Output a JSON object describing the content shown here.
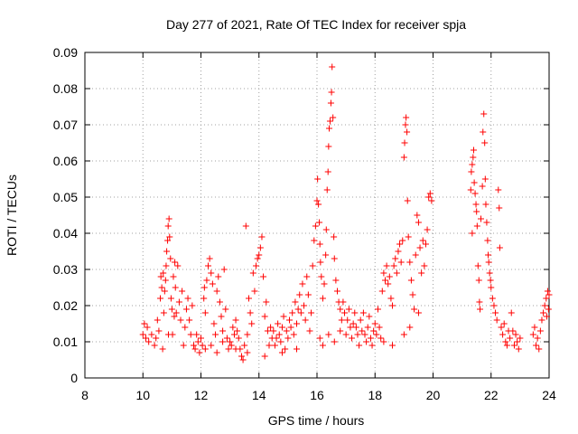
{
  "chart_data": {
    "type": "scatter",
    "title": "Day 277 of 2021, Rate Of TEC Index for receiver spja",
    "xlabel": "GPS time / hours",
    "ylabel": "ROTI / TECUs",
    "xlim": [
      8,
      24
    ],
    "ylim": [
      0,
      0.09
    ],
    "x_ticks": [
      "8",
      "10",
      "12",
      "14",
      "16",
      "18",
      "20",
      "22",
      "24"
    ],
    "y_ticks": [
      "0",
      "0.01",
      "0.02",
      "0.03",
      "0.04",
      "0.05",
      "0.06",
      "0.07",
      "0.08",
      "0.09"
    ],
    "grid": true,
    "marker": "+",
    "color": "#ff0000",
    "series": [
      {
        "name": "ROTI",
        "points": [
          [
            10.0,
            0.012
          ],
          [
            10.05,
            0.015
          ],
          [
            10.1,
            0.011
          ],
          [
            10.15,
            0.014
          ],
          [
            10.2,
            0.01
          ],
          [
            10.3,
            0.012
          ],
          [
            10.4,
            0.009
          ],
          [
            10.45,
            0.011
          ],
          [
            10.5,
            0.016
          ],
          [
            10.55,
            0.013
          ],
          [
            10.6,
            0.022
          ],
          [
            10.62,
            0.028
          ],
          [
            10.65,
            0.025
          ],
          [
            10.7,
            0.029
          ],
          [
            10.72,
            0.018
          ],
          [
            10.75,
            0.024
          ],
          [
            10.78,
            0.027
          ],
          [
            10.8,
            0.031
          ],
          [
            10.82,
            0.035
          ],
          [
            10.85,
            0.038
          ],
          [
            10.87,
            0.042
          ],
          [
            10.9,
            0.044
          ],
          [
            10.92,
            0.039
          ],
          [
            10.95,
            0.033
          ],
          [
            10.97,
            0.022
          ],
          [
            11.0,
            0.019
          ],
          [
            11.02,
            0.012
          ],
          [
            11.05,
            0.028
          ],
          [
            11.1,
            0.032
          ],
          [
            11.12,
            0.025
          ],
          [
            11.15,
            0.018
          ],
          [
            11.2,
            0.031
          ],
          [
            11.25,
            0.021
          ],
          [
            11.3,
            0.016
          ],
          [
            11.35,
            0.024
          ],
          [
            11.4,
            0.009
          ],
          [
            11.45,
            0.014
          ],
          [
            11.5,
            0.019
          ],
          [
            11.55,
            0.022
          ],
          [
            11.6,
            0.016
          ],
          [
            11.65,
            0.012
          ],
          [
            11.7,
            0.02
          ],
          [
            11.75,
            0.009
          ],
          [
            11.8,
            0.008
          ],
          [
            11.85,
            0.012
          ],
          [
            11.9,
            0.01
          ],
          [
            11.95,
            0.007
          ],
          [
            10.68,
            0.008
          ],
          [
            10.88,
            0.012
          ],
          [
            11.08,
            0.017
          ],
          [
            12.0,
            0.011
          ],
          [
            12.05,
            0.009
          ],
          [
            12.1,
            0.022
          ],
          [
            12.12,
            0.025
          ],
          [
            12.15,
            0.018
          ],
          [
            12.2,
            0.027
          ],
          [
            12.25,
            0.031
          ],
          [
            12.3,
            0.033
          ],
          [
            12.35,
            0.029
          ],
          [
            12.4,
            0.026
          ],
          [
            12.45,
            0.015
          ],
          [
            12.5,
            0.012
          ],
          [
            12.55,
            0.024
          ],
          [
            12.6,
            0.028
          ],
          [
            12.65,
            0.021
          ],
          [
            12.7,
            0.017
          ],
          [
            12.75,
            0.013
          ],
          [
            12.8,
            0.03
          ],
          [
            12.85,
            0.019
          ],
          [
            12.9,
            0.011
          ],
          [
            12.15,
            0.008
          ],
          [
            12.35,
            0.009
          ],
          [
            12.55,
            0.007
          ],
          [
            12.75,
            0.01
          ],
          [
            12.95,
            0.008
          ],
          [
            13.0,
            0.01
          ],
          [
            13.05,
            0.009
          ],
          [
            13.1,
            0.014
          ],
          [
            13.15,
            0.012
          ],
          [
            13.2,
            0.016
          ],
          [
            13.25,
            0.013
          ],
          [
            13.3,
            0.011
          ],
          [
            13.35,
            0.008
          ],
          [
            13.4,
            0.006
          ],
          [
            13.45,
            0.005
          ],
          [
            13.5,
            0.009
          ],
          [
            13.55,
            0.042
          ],
          [
            13.6,
            0.012
          ],
          [
            13.65,
            0.022
          ],
          [
            13.7,
            0.018
          ],
          [
            13.75,
            0.015
          ],
          [
            13.8,
            0.029
          ],
          [
            13.85,
            0.024
          ],
          [
            13.9,
            0.031
          ],
          [
            13.95,
            0.033
          ],
          [
            14.0,
            0.034
          ],
          [
            14.05,
            0.036
          ],
          [
            14.1,
            0.039
          ],
          [
            14.15,
            0.028
          ],
          [
            14.2,
            0.017
          ],
          [
            14.25,
            0.021
          ],
          [
            14.3,
            0.013
          ],
          [
            14.35,
            0.009
          ],
          [
            14.4,
            0.014
          ],
          [
            14.45,
            0.011
          ],
          [
            14.5,
            0.013
          ],
          [
            14.55,
            0.009
          ],
          [
            14.6,
            0.011
          ],
          [
            14.65,
            0.015
          ],
          [
            14.7,
            0.012
          ],
          [
            14.75,
            0.01
          ],
          [
            14.8,
            0.014
          ],
          [
            14.85,
            0.017
          ],
          [
            14.9,
            0.008
          ],
          [
            14.95,
            0.013
          ],
          [
            15.0,
            0.011
          ],
          [
            15.05,
            0.016
          ],
          [
            15.1,
            0.014
          ],
          [
            15.15,
            0.018
          ],
          [
            15.2,
            0.012
          ],
          [
            15.25,
            0.021
          ],
          [
            15.3,
            0.015
          ],
          [
            15.35,
            0.019
          ],
          [
            15.4,
            0.023
          ],
          [
            15.45,
            0.018
          ],
          [
            15.5,
            0.026
          ],
          [
            15.55,
            0.02
          ],
          [
            15.6,
            0.016
          ],
          [
            15.65,
            0.028
          ],
          [
            15.7,
            0.023
          ],
          [
            15.75,
            0.013
          ],
          [
            15.8,
            0.018
          ],
          [
            15.85,
            0.031
          ],
          [
            15.9,
            0.038
          ],
          [
            15.95,
            0.042
          ],
          [
            13.2,
            0.008
          ],
          [
            13.6,
            0.007
          ],
          [
            14.2,
            0.006
          ],
          [
            14.8,
            0.007
          ],
          [
            15.3,
            0.008
          ],
          [
            16.0,
            0.049
          ],
          [
            16.02,
            0.055
          ],
          [
            16.05,
            0.048
          ],
          [
            16.08,
            0.043
          ],
          [
            16.1,
            0.037
          ],
          [
            16.12,
            0.032
          ],
          [
            16.15,
            0.028
          ],
          [
            16.2,
            0.022
          ],
          [
            16.25,
            0.026
          ],
          [
            16.3,
            0.034
          ],
          [
            16.32,
            0.041
          ],
          [
            16.35,
            0.052
          ],
          [
            16.38,
            0.057
          ],
          [
            16.4,
            0.064
          ],
          [
            16.42,
            0.069
          ],
          [
            16.45,
            0.071
          ],
          [
            16.48,
            0.076
          ],
          [
            16.5,
            0.079
          ],
          [
            16.52,
            0.086
          ],
          [
            16.55,
            0.072
          ],
          [
            16.58,
            0.039
          ],
          [
            16.6,
            0.033
          ],
          [
            16.65,
            0.027
          ],
          [
            16.7,
            0.024
          ],
          [
            16.75,
            0.021
          ],
          [
            16.8,
            0.019
          ],
          [
            16.85,
            0.016
          ],
          [
            16.9,
            0.021
          ],
          [
            16.95,
            0.018
          ],
          [
            16.1,
            0.011
          ],
          [
            16.2,
            0.009
          ],
          [
            16.4,
            0.012
          ],
          [
            16.6,
            0.01
          ],
          [
            16.8,
            0.013
          ],
          [
            17.0,
            0.012
          ],
          [
            17.05,
            0.016
          ],
          [
            17.1,
            0.019
          ],
          [
            17.15,
            0.014
          ],
          [
            17.2,
            0.011
          ],
          [
            17.25,
            0.015
          ],
          [
            17.3,
            0.018
          ],
          [
            17.35,
            0.014
          ],
          [
            17.4,
            0.012
          ],
          [
            17.45,
            0.009
          ],
          [
            17.5,
            0.016
          ],
          [
            17.55,
            0.013
          ],
          [
            17.6,
            0.018
          ],
          [
            17.65,
            0.012
          ],
          [
            17.7,
            0.01
          ],
          [
            17.75,
            0.014
          ],
          [
            17.8,
            0.017
          ],
          [
            17.85,
            0.011
          ],
          [
            17.9,
            0.009
          ],
          [
            17.95,
            0.013
          ],
          [
            18.0,
            0.015
          ],
          [
            18.05,
            0.012
          ],
          [
            18.1,
            0.019
          ],
          [
            18.15,
            0.014
          ],
          [
            18.2,
            0.011
          ],
          [
            18.25,
            0.024
          ],
          [
            18.3,
            0.029
          ],
          [
            18.35,
            0.027
          ],
          [
            18.4,
            0.031
          ],
          [
            18.45,
            0.026
          ],
          [
            18.5,
            0.028
          ],
          [
            18.55,
            0.022
          ],
          [
            18.6,
            0.02
          ],
          [
            18.65,
            0.031
          ],
          [
            18.7,
            0.033
          ],
          [
            18.75,
            0.029
          ],
          [
            18.8,
            0.035
          ],
          [
            18.85,
            0.037
          ],
          [
            18.9,
            0.032
          ],
          [
            18.95,
            0.038
          ],
          [
            19.0,
            0.061
          ],
          [
            19.02,
            0.065
          ],
          [
            19.05,
            0.07
          ],
          [
            19.07,
            0.072
          ],
          [
            19.1,
            0.068
          ],
          [
            19.12,
            0.049
          ],
          [
            19.15,
            0.039
          ],
          [
            19.2,
            0.032
          ],
          [
            19.25,
            0.027
          ],
          [
            19.3,
            0.023
          ],
          [
            19.35,
            0.019
          ],
          [
            19.4,
            0.034
          ],
          [
            19.45,
            0.045
          ],
          [
            19.5,
            0.043
          ],
          [
            19.55,
            0.036
          ],
          [
            19.6,
            0.029
          ],
          [
            19.65,
            0.038
          ],
          [
            19.7,
            0.031
          ],
          [
            19.75,
            0.037
          ],
          [
            19.8,
            0.041
          ],
          [
            19.85,
            0.05
          ],
          [
            19.9,
            0.051
          ],
          [
            19.95,
            0.049
          ],
          [
            18.3,
            0.01
          ],
          [
            18.6,
            0.009
          ],
          [
            19.0,
            0.012
          ],
          [
            19.2,
            0.014
          ],
          [
            19.5,
            0.018
          ],
          [
            21.3,
            0.052
          ],
          [
            21.32,
            0.057
          ],
          [
            21.35,
            0.059
          ],
          [
            21.38,
            0.061
          ],
          [
            21.4,
            0.063
          ],
          [
            21.42,
            0.054
          ],
          [
            21.45,
            0.051
          ],
          [
            21.48,
            0.048
          ],
          [
            21.5,
            0.046
          ],
          [
            21.52,
            0.042
          ],
          [
            21.35,
            0.04
          ],
          [
            21.55,
            0.031
          ],
          [
            21.58,
            0.027
          ],
          [
            21.6,
            0.021
          ],
          [
            21.62,
            0.019
          ],
          [
            21.65,
            0.044
          ],
          [
            21.7,
            0.053
          ],
          [
            21.72,
            0.068
          ],
          [
            21.75,
            0.073
          ],
          [
            21.78,
            0.065
          ],
          [
            21.8,
            0.055
          ],
          [
            21.82,
            0.048
          ],
          [
            21.85,
            0.043
          ],
          [
            21.88,
            0.038
          ],
          [
            21.9,
            0.034
          ],
          [
            21.92,
            0.032
          ],
          [
            21.95,
            0.029
          ],
          [
            21.98,
            0.027
          ],
          [
            22.0,
            0.025
          ],
          [
            22.05,
            0.022
          ],
          [
            22.1,
            0.02
          ],
          [
            22.15,
            0.018
          ],
          [
            22.2,
            0.016
          ],
          [
            22.25,
            0.052
          ],
          [
            22.28,
            0.047
          ],
          [
            22.3,
            0.036
          ],
          [
            22.35,
            0.014
          ],
          [
            22.4,
            0.012
          ],
          [
            22.45,
            0.015
          ],
          [
            22.5,
            0.01
          ],
          [
            22.55,
            0.009
          ],
          [
            22.6,
            0.013
          ],
          [
            22.65,
            0.011
          ],
          [
            22.7,
            0.018
          ],
          [
            22.75,
            0.013
          ],
          [
            22.8,
            0.009
          ],
          [
            22.85,
            0.012
          ],
          [
            22.9,
            0.01
          ],
          [
            22.95,
            0.008
          ],
          [
            23.0,
            0.011
          ],
          [
            23.45,
            0.012
          ],
          [
            23.5,
            0.014
          ],
          [
            23.55,
            0.009
          ],
          [
            23.6,
            0.011
          ],
          [
            23.65,
            0.008
          ],
          [
            23.7,
            0.013
          ],
          [
            23.75,
            0.016
          ],
          [
            23.8,
            0.018
          ],
          [
            23.85,
            0.02
          ],
          [
            23.9,
            0.022
          ],
          [
            23.95,
            0.024
          ],
          [
            24.0,
            0.023
          ],
          [
            23.92,
            0.017
          ],
          [
            23.98,
            0.019
          ]
        ]
      }
    ]
  }
}
